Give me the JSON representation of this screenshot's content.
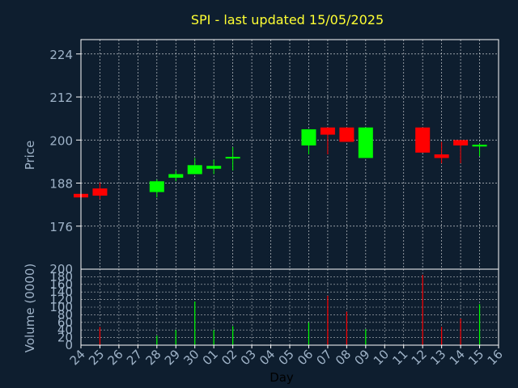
{
  "title": "SPI - last updated 15/05/2025",
  "colors": {
    "background": "#0e1e2f",
    "title": "#ffff33",
    "axis_text": "#9fb3c8",
    "frame": "#ffffff",
    "grid": "#ffffff",
    "up": "#00ff00",
    "down": "#ff0000"
  },
  "chart_data": [
    {
      "type": "candlestick",
      "ylabel": "Price",
      "ylim": [
        164,
        228
      ],
      "yticks": [
        176,
        188,
        200,
        212,
        224
      ],
      "grid": true,
      "x": [
        "24",
        "25",
        "26",
        "27",
        "28",
        "29",
        "30",
        "01",
        "02",
        "03",
        "04",
        "05",
        "06",
        "07",
        "08",
        "09",
        "10",
        "11",
        "12",
        "13",
        "14",
        "15",
        "16"
      ],
      "candles": [
        {
          "day": "24",
          "open": 185.0,
          "close": 184.0,
          "high": 185.0,
          "low": 184.0
        },
        {
          "day": "25",
          "open": 186.5,
          "close": 184.5,
          "high": 188.2,
          "low": 183.5
        },
        {
          "day": "28",
          "open": 185.5,
          "close": 188.5,
          "high": 189.0,
          "low": 184.0
        },
        {
          "day": "29",
          "open": 189.5,
          "close": 190.5,
          "high": 191.5,
          "low": 188.5
        },
        {
          "day": "30",
          "open": 190.5,
          "close": 193.0,
          "high": 195.0,
          "low": 190.5
        },
        {
          "day": "01",
          "open": 192.0,
          "close": 192.8,
          "high": 194.5,
          "low": 190.5
        },
        {
          "day": "02",
          "open": 195.0,
          "close": 195.3,
          "high": 198.0,
          "low": 191.5
        },
        {
          "day": "06",
          "open": 198.5,
          "close": 203.0,
          "high": 203.0,
          "low": 196.0
        },
        {
          "day": "07",
          "open": 203.5,
          "close": 201.5,
          "high": 203.5,
          "low": 196.0
        },
        {
          "day": "08",
          "open": 203.5,
          "close": 199.5,
          "high": 203.5,
          "low": 199.5
        },
        {
          "day": "09",
          "open": 195.0,
          "close": 203.5,
          "high": 203.5,
          "low": 195.0
        },
        {
          "day": "12",
          "open": 203.5,
          "close": 196.5,
          "high": 203.5,
          "low": 196.5
        },
        {
          "day": "13",
          "open": 196.0,
          "close": 195.0,
          "high": 199.5,
          "low": 193.5
        },
        {
          "day": "14",
          "open": 200.0,
          "close": 198.5,
          "high": 200.0,
          "low": 193.5
        },
        {
          "day": "15",
          "open": 198.2,
          "close": 198.7,
          "high": 199.0,
          "low": 195.5
        }
      ]
    },
    {
      "type": "bar",
      "xlabel": "Day",
      "ylabel": "Volume (0000)",
      "ylim": [
        0,
        200
      ],
      "yticks": [
        0,
        20,
        40,
        60,
        80,
        100,
        120,
        140,
        160,
        180,
        200
      ],
      "grid": true,
      "categories": [
        "24",
        "25",
        "26",
        "27",
        "28",
        "29",
        "30",
        "01",
        "02",
        "03",
        "04",
        "05",
        "06",
        "07",
        "08",
        "09",
        "10",
        "11",
        "12",
        "13",
        "14",
        "15",
        "16"
      ],
      "bars": [
        {
          "day": "25",
          "value": 48,
          "color": "down"
        },
        {
          "day": "28",
          "value": 25,
          "color": "up"
        },
        {
          "day": "29",
          "value": 40,
          "color": "up"
        },
        {
          "day": "30",
          "value": 115,
          "color": "up"
        },
        {
          "day": "01",
          "value": 40,
          "color": "up"
        },
        {
          "day": "02",
          "value": 50,
          "color": "up"
        },
        {
          "day": "06",
          "value": 60,
          "color": "up"
        },
        {
          "day": "07",
          "value": 130,
          "color": "down"
        },
        {
          "day": "08",
          "value": 88,
          "color": "down"
        },
        {
          "day": "09",
          "value": 42,
          "color": "up"
        },
        {
          "day": "12",
          "value": 185,
          "color": "down"
        },
        {
          "day": "13",
          "value": 48,
          "color": "down"
        },
        {
          "day": "14",
          "value": 70,
          "color": "down"
        },
        {
          "day": "15",
          "value": 108,
          "color": "up"
        }
      ]
    }
  ]
}
